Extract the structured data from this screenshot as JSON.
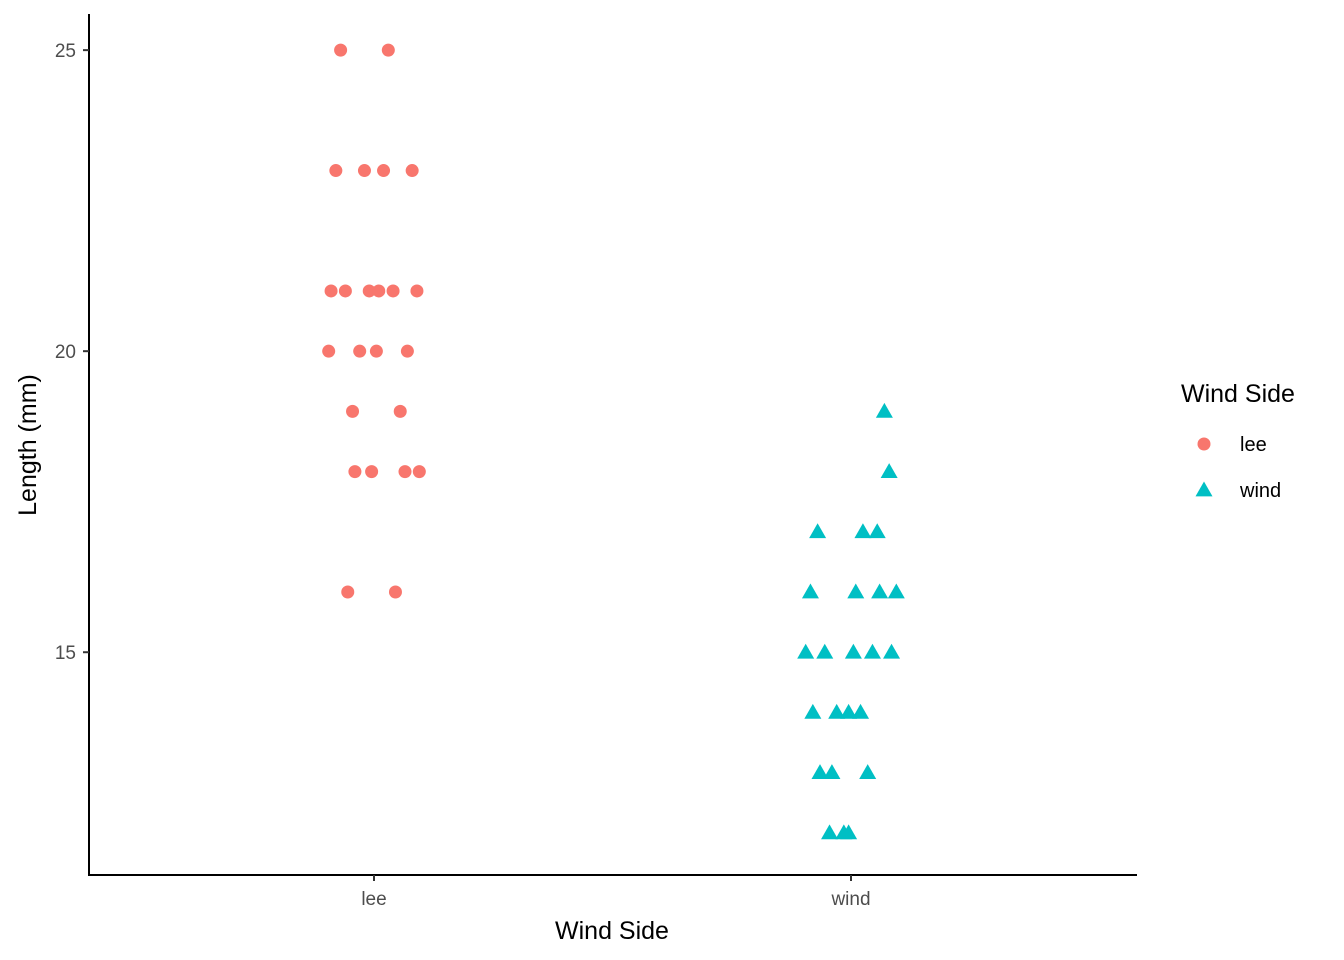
{
  "chart_data": {
    "type": "scatter",
    "title": "",
    "xlabel": "Wind Side",
    "ylabel": "Length (mm)",
    "categories": [
      "lee",
      "wind"
    ],
    "yticks": [
      15,
      20,
      25
    ],
    "ytick_labels": [
      "15",
      "20",
      "25"
    ],
    "ylim": [
      11.3,
      25.6
    ],
    "grid": false,
    "legend": {
      "title": "Wind Side",
      "placement": "right",
      "entries": [
        {
          "label": "lee",
          "shape": "circle",
          "color": "#F8766D"
        },
        {
          "label": "wind",
          "shape": "triangle",
          "color": "#00BFC4"
        }
      ]
    },
    "series": [
      {
        "name": "lee",
        "shape": "circle",
        "color": "#F8766D",
        "points": [
          {
            "jitter": -0.07,
            "y": 25
          },
          {
            "jitter": 0.03,
            "y": 25
          },
          {
            "jitter": -0.08,
            "y": 23
          },
          {
            "jitter": -0.02,
            "y": 23
          },
          {
            "jitter": 0.02,
            "y": 23
          },
          {
            "jitter": 0.08,
            "y": 23
          },
          {
            "jitter": -0.09,
            "y": 21
          },
          {
            "jitter": -0.06,
            "y": 21
          },
          {
            "jitter": -0.01,
            "y": 21
          },
          {
            "jitter": 0.01,
            "y": 21
          },
          {
            "jitter": 0.04,
            "y": 21
          },
          {
            "jitter": 0.09,
            "y": 21
          },
          {
            "jitter": -0.095,
            "y": 20
          },
          {
            "jitter": -0.03,
            "y": 20
          },
          {
            "jitter": 0.005,
            "y": 20
          },
          {
            "jitter": 0.07,
            "y": 20
          },
          {
            "jitter": -0.045,
            "y": 19
          },
          {
            "jitter": 0.055,
            "y": 19
          },
          {
            "jitter": -0.04,
            "y": 18
          },
          {
            "jitter": -0.005,
            "y": 18
          },
          {
            "jitter": 0.065,
            "y": 18
          },
          {
            "jitter": 0.095,
            "y": 18
          },
          {
            "jitter": -0.055,
            "y": 16
          },
          {
            "jitter": 0.045,
            "y": 16
          }
        ]
      },
      {
        "name": "wind",
        "shape": "triangle",
        "color": "#00BFC4",
        "points": [
          {
            "jitter": 0.07,
            "y": 19
          },
          {
            "jitter": 0.08,
            "y": 18
          },
          {
            "jitter": -0.07,
            "y": 17
          },
          {
            "jitter": 0.025,
            "y": 17
          },
          {
            "jitter": 0.055,
            "y": 17
          },
          {
            "jitter": -0.085,
            "y": 16
          },
          {
            "jitter": 0.01,
            "y": 16
          },
          {
            "jitter": 0.06,
            "y": 16
          },
          {
            "jitter": 0.095,
            "y": 16
          },
          {
            "jitter": -0.095,
            "y": 15
          },
          {
            "jitter": -0.055,
            "y": 15
          },
          {
            "jitter": 0.005,
            "y": 15
          },
          {
            "jitter": 0.045,
            "y": 15
          },
          {
            "jitter": 0.085,
            "y": 15
          },
          {
            "jitter": -0.08,
            "y": 14
          },
          {
            "jitter": -0.03,
            "y": 14
          },
          {
            "jitter": -0.005,
            "y": 14
          },
          {
            "jitter": 0.02,
            "y": 14
          },
          {
            "jitter": -0.065,
            "y": 13
          },
          {
            "jitter": -0.04,
            "y": 13
          },
          {
            "jitter": 0.035,
            "y": 13
          },
          {
            "jitter": -0.045,
            "y": 12
          },
          {
            "jitter": -0.015,
            "y": 12
          },
          {
            "jitter": -0.005,
            "y": 12
          }
        ]
      }
    ]
  }
}
